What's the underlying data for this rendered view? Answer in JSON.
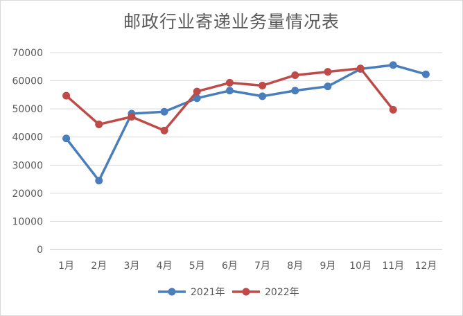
{
  "chart_data": {
    "type": "line",
    "title": "邮政行业寄递业务量情况表",
    "categories": [
      "1月",
      "2月",
      "3月",
      "4月",
      "5月",
      "6月",
      "7月",
      "8月",
      "9月",
      "10月",
      "11月",
      "12月"
    ],
    "yticks": [
      "0",
      "10000",
      "20000",
      "30000",
      "40000",
      "50000",
      "60000",
      "70000"
    ],
    "ylim": [
      0,
      70000
    ],
    "grid": true,
    "legend_position": "bottom",
    "series": [
      {
        "name": "2021年",
        "color": "#4a7ebb",
        "values": [
          39500,
          24500,
          48300,
          49000,
          53800,
          56500,
          54500,
          56500,
          58000,
          64200,
          65600,
          62300
        ]
      },
      {
        "name": "2022年",
        "color": "#be4b48",
        "values": [
          54700,
          44500,
          47200,
          42300,
          56200,
          59300,
          58300,
          62000,
          63200,
          64400,
          49700,
          null
        ]
      }
    ]
  }
}
